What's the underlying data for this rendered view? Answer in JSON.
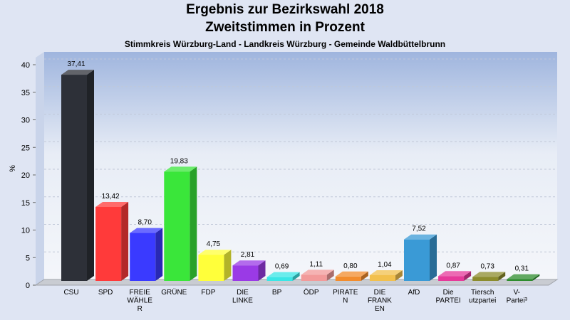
{
  "header": {
    "title_line1": "Ergebnis zur Bezirkswahl 2018",
    "title_line2": "Zweitstimmen in Prozent",
    "subtitle": "Stimmkreis Würzburg-Land - Landkreis Würzburg - Gemeinde Waldbüttelbrunn"
  },
  "chart_data": {
    "type": "bar",
    "title": "Ergebnis zur Bezirkswahl 2018 Zweitstimmen in Prozent",
    "subtitle": "Stimmkreis Würzburg-Land - Landkreis Würzburg - Gemeinde Waldbüttelbrunn",
    "ylabel": "%",
    "ylim": [
      0,
      40
    ],
    "yticks": [
      "0",
      "5",
      "10",
      "15",
      "20",
      "25",
      "30",
      "35",
      "40"
    ],
    "grid": true,
    "categories": [
      [
        "CSU"
      ],
      [
        "SPD"
      ],
      [
        "FREIE",
        "WÄHLE",
        "R"
      ],
      [
        "GRÜNE"
      ],
      [
        "FDP"
      ],
      [
        "DIE",
        "LINKE"
      ],
      [
        "BP"
      ],
      [
        "ÖDP"
      ],
      [
        "PIRATE",
        "N"
      ],
      [
        "DIE",
        "FRANK",
        "EN"
      ],
      [
        "AfD"
      ],
      [
        "Die",
        "PARTEI"
      ],
      [
        "Tiersch",
        "utzpartei"
      ],
      [
        "V-",
        "Partei³"
      ]
    ],
    "values": [
      37.41,
      13.42,
      8.7,
      19.83,
      4.75,
      2.81,
      0.69,
      1.11,
      0.8,
      1.04,
      7.52,
      0.87,
      0.73,
      0.31
    ],
    "value_labels": [
      "37,41",
      "13,42",
      "8,70",
      "19,83",
      "4,75",
      "2,81",
      "0,69",
      "1,11",
      "0,80",
      "1,04",
      "7,52",
      "0,87",
      "0,73",
      "0,31"
    ],
    "colors": [
      "#2d3038",
      "#ff3a3a",
      "#3a3aff",
      "#3ae63a",
      "#ffff3a",
      "#9a3ae6",
      "#3ae6e6",
      "#f29a9a",
      "#f28c2d",
      "#f2c04d",
      "#3a9ad6",
      "#e63a9a",
      "#8c8c2d",
      "#2d8c2d"
    ]
  }
}
